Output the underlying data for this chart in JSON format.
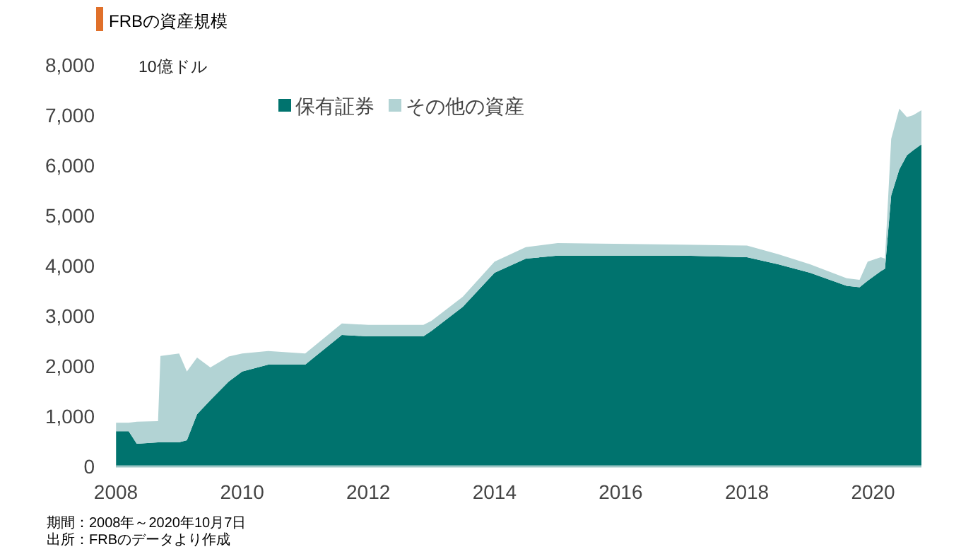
{
  "chart_data": {
    "type": "area",
    "stacked": true,
    "title": "FRBの資産規模",
    "ylabel": "10億ドル",
    "x": [
      "2008-01-02",
      "2008-03-15",
      "2008-05-01",
      "2008-09-01",
      "2008-09-15",
      "2009-01-01",
      "2009-02-15",
      "2009-04-15",
      "2009-07-01",
      "2009-10-15",
      "2010-01-01",
      "2010-06-01",
      "2011-01-01",
      "2011-08-01",
      "2012-01-01",
      "2012-11-15",
      "2013-01-01",
      "2013-07-01",
      "2014-01-01",
      "2014-07-01",
      "2015-01-01",
      "2017-01-01",
      "2018-01-01",
      "2018-07-01",
      "2019-01-01",
      "2019-08-01",
      "2019-10-15",
      "2019-12-01",
      "2020-02-15",
      "2020-03-10",
      "2020-04-15",
      "2020-06-01",
      "2020-07-15",
      "2020-08-20",
      "2020-10-07"
    ],
    "series": [
      {
        "name": "保有証券",
        "color": "#00736e",
        "values": [
          700,
          700,
          450,
          480,
          480,
          480,
          520,
          1040,
          1320,
          1690,
          1890,
          2030,
          2030,
          2620,
          2590,
          2590,
          2700,
          3180,
          3860,
          4140,
          4200,
          4200,
          4170,
          4030,
          3860,
          3600,
          3570,
          3700,
          3890,
          3940,
          5400,
          5920,
          6200,
          6300,
          6420
        ]
      },
      {
        "name": "その他の資産",
        "color": "#b2d3d4",
        "values": [
          170,
          170,
          440,
          420,
          1720,
          1770,
          1370,
          1130,
          650,
          500,
          360,
          270,
          220,
          230,
          230,
          230,
          200,
          200,
          220,
          230,
          250,
          220,
          230,
          200,
          170,
          150,
          150,
          380,
          280,
          200,
          1130,
          1210,
          760,
          700,
          680
        ]
      }
    ],
    "xlim": [
      "2008-01-01",
      "2020-10-07"
    ],
    "xticks": [
      {
        "value": "2008-01-01",
        "label": "2008"
      },
      {
        "value": "2010-01-01",
        "label": "2010"
      },
      {
        "value": "2012-01-01",
        "label": "2012"
      },
      {
        "value": "2014-01-01",
        "label": "2014"
      },
      {
        "value": "2016-01-01",
        "label": "2016"
      },
      {
        "value": "2018-01-01",
        "label": "2018"
      },
      {
        "value": "2020-01-01",
        "label": "2020"
      }
    ],
    "ylim": [
      0,
      8000
    ],
    "yticks": [
      0,
      {
        "value": 1000,
        "label": "1,000"
      },
      {
        "value": 2000,
        "label": "2,000"
      },
      {
        "value": 3000,
        "label": "3,000"
      },
      {
        "value": 4000,
        "label": "4,000"
      },
      {
        "value": 5000,
        "label": "5,000"
      },
      {
        "value": 6000,
        "label": "6,000"
      },
      {
        "value": 7000,
        "label": "7,000"
      },
      {
        "value": 8000,
        "label": "8,000"
      }
    ],
    "legend": "top",
    "annotations": [
      "期間：2008年～2020年10月7日",
      "出所：FRBのデータより作成"
    ]
  }
}
